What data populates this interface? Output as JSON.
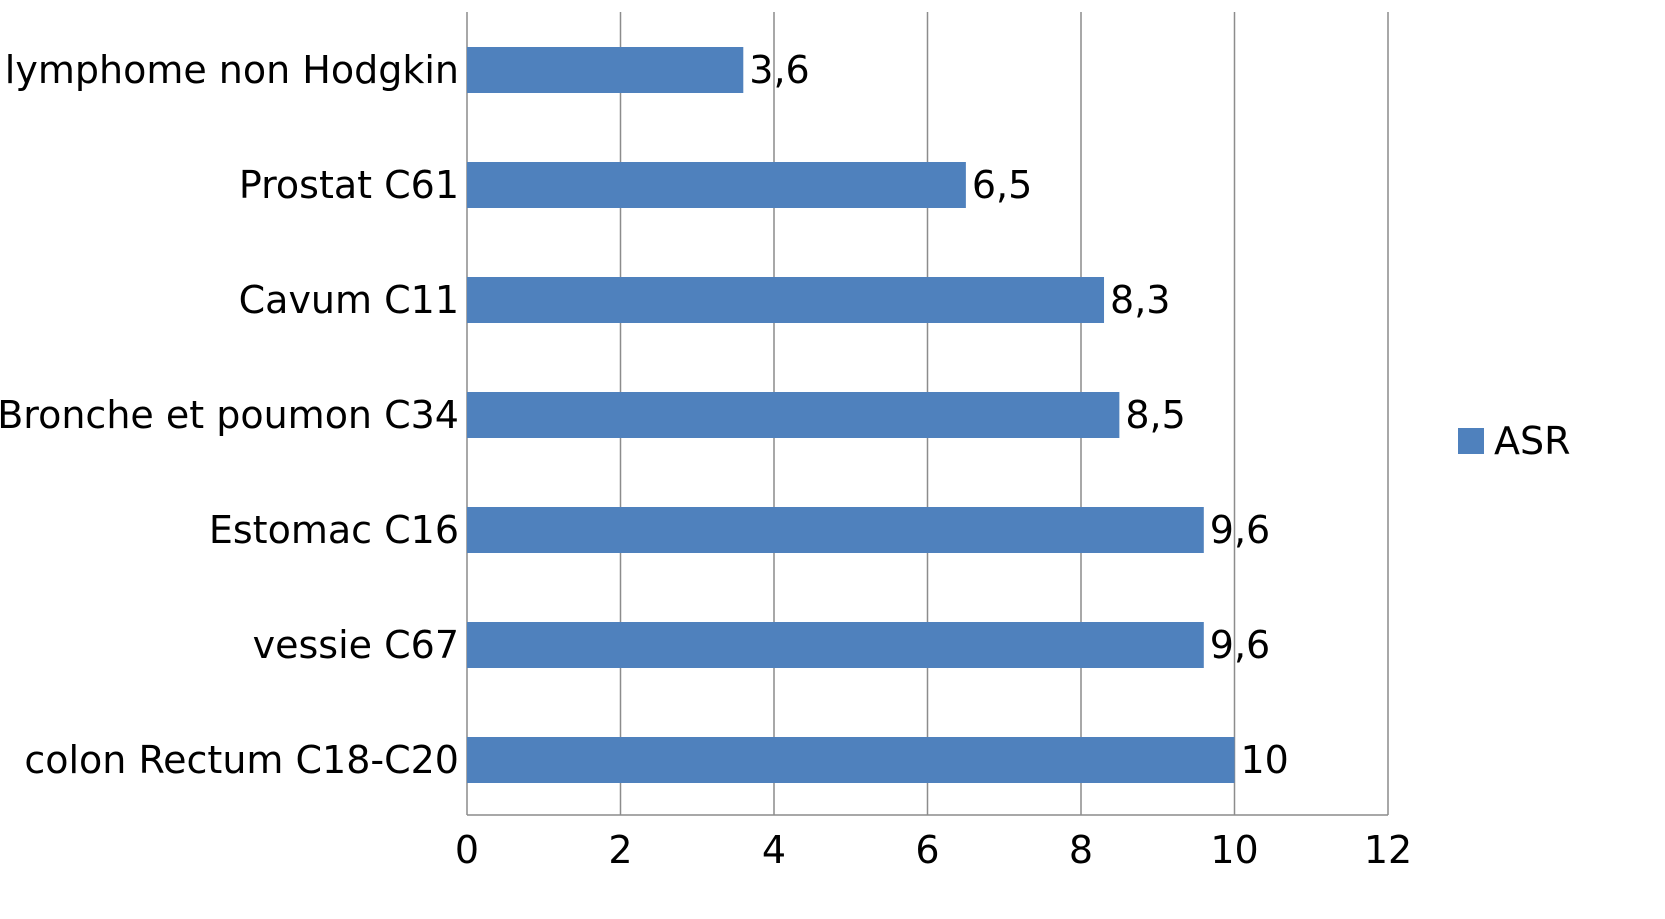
{
  "chart_data": {
    "type": "bar",
    "orientation": "horizontal",
    "categories": [
      "lymphome non Hodgkin",
      "Prostat C61",
      "Cavum C11",
      "Bronche et poumon C34",
      "Estomac C16",
      "vessie C67",
      "colon Rectum C18-C20"
    ],
    "series": [
      {
        "name": "ASR",
        "values": [
          3.6,
          6.5,
          8.3,
          8.5,
          9.6,
          9.6,
          10
        ],
        "value_labels": [
          "3,6",
          "6,5",
          "8,3",
          "8,5",
          "9,6",
          "9,6",
          "10"
        ],
        "color": "#4f81bd"
      }
    ],
    "xlim": [
      0,
      12
    ],
    "xticks": [
      0,
      2,
      4,
      6,
      8,
      10,
      12
    ],
    "xtick_labels": [
      "0",
      "2",
      "4",
      "6",
      "8",
      "10",
      "12"
    ],
    "grid": true,
    "legend_position": "right"
  }
}
